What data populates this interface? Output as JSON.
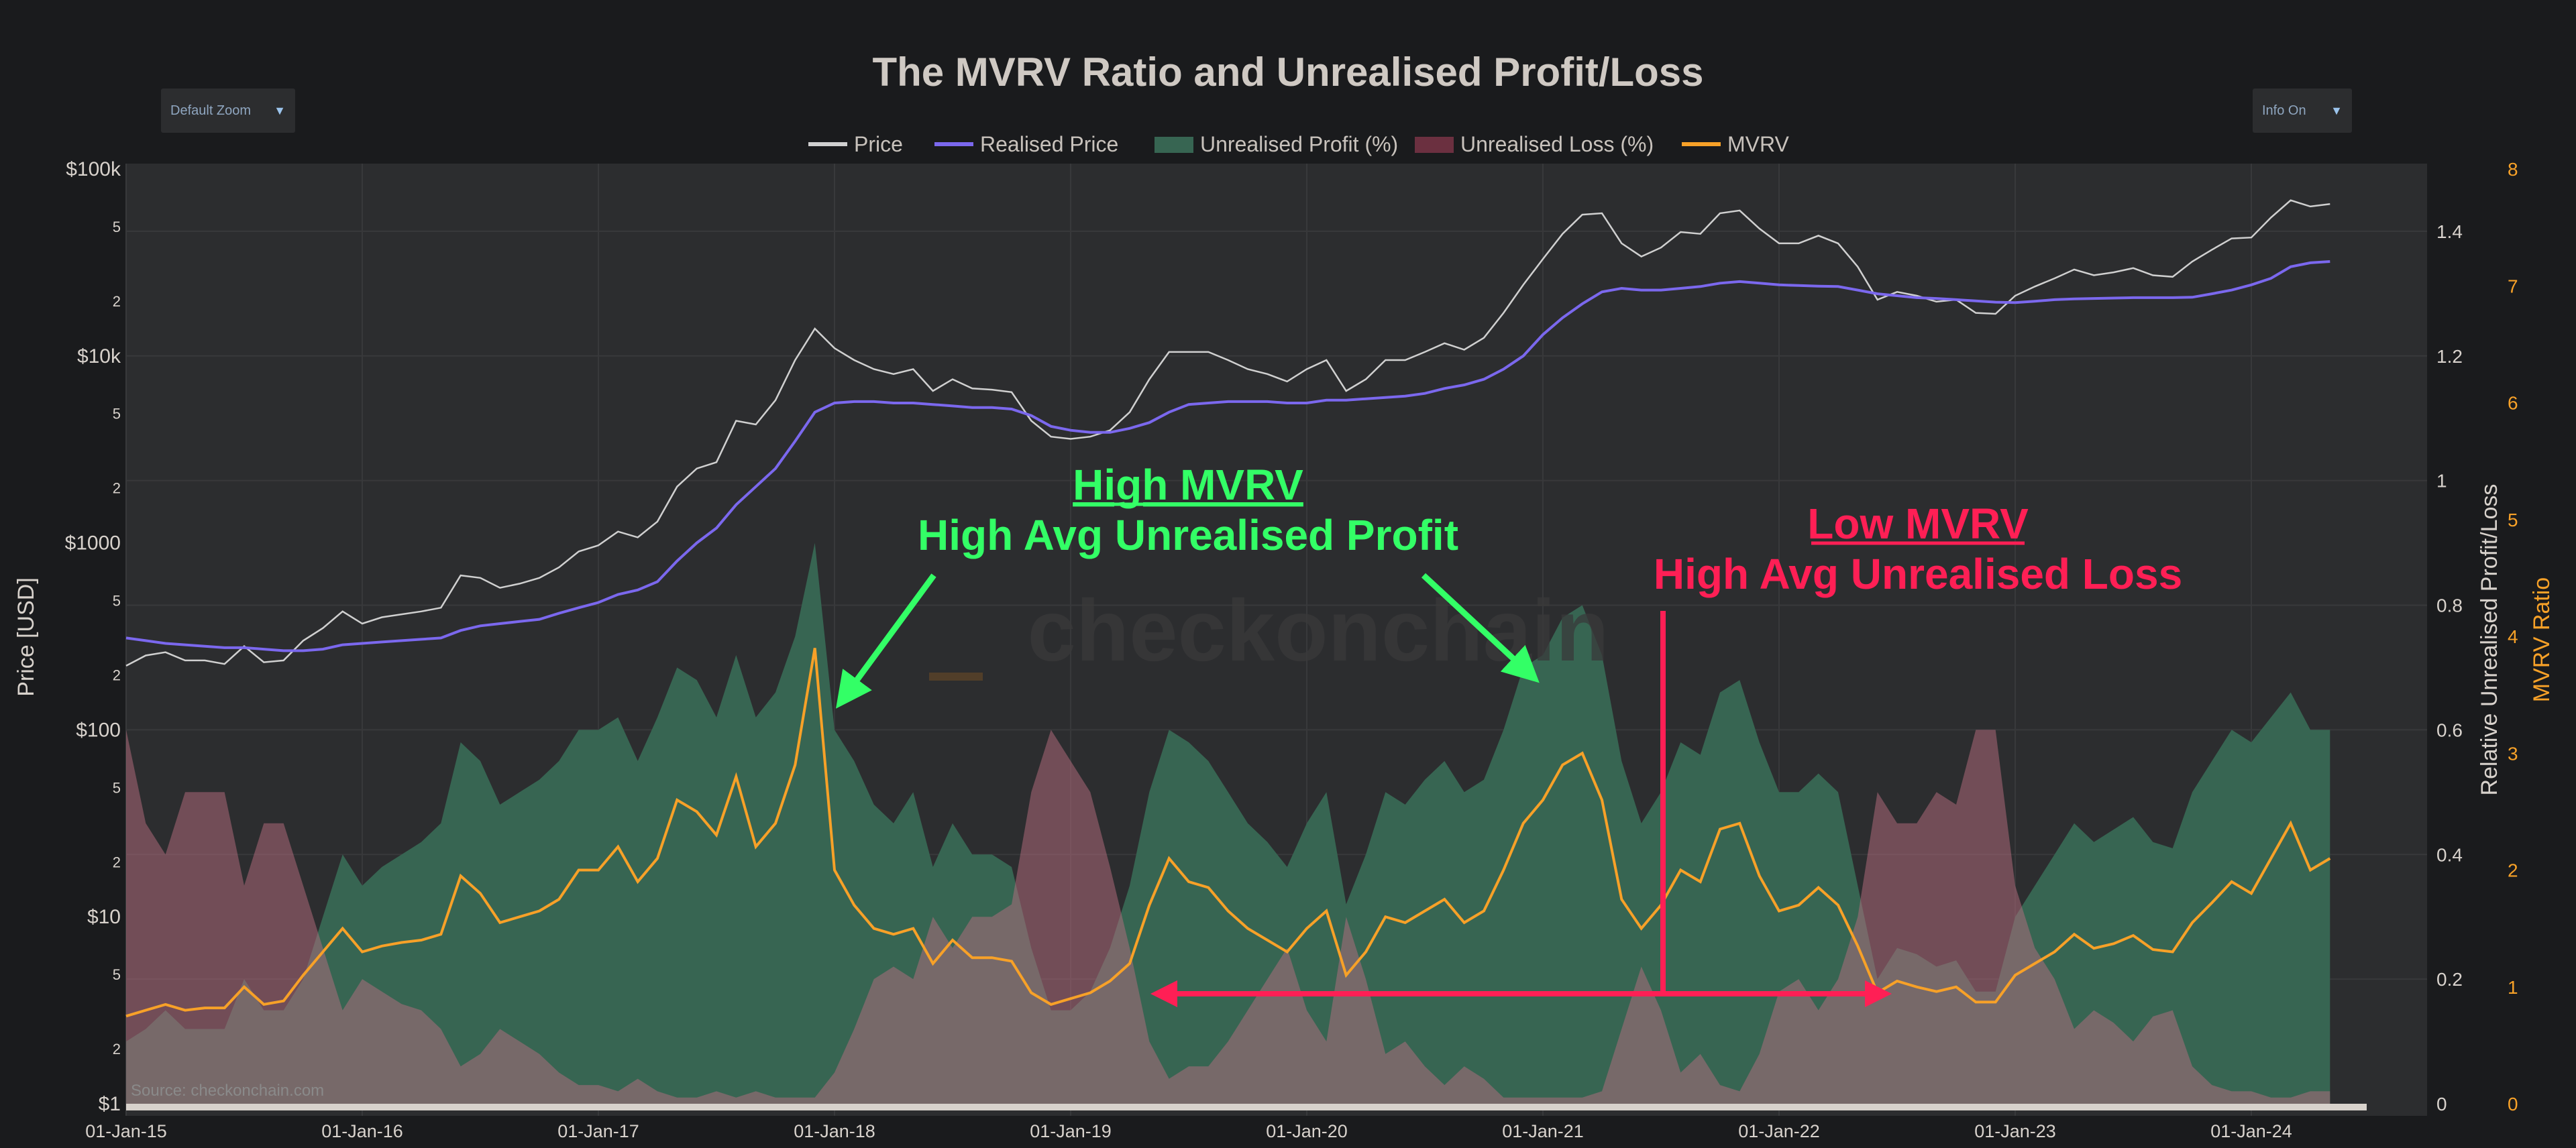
{
  "controls": {
    "zoom_label": "Default Zoom",
    "info_label": "Info On",
    "dropdown_icon": "triangle-down"
  },
  "annotations": {
    "high_mvrv": "High MVRV",
    "high_profit": "High Avg Unrealised Profit",
    "low_mvrv": "Low MVRV",
    "high_loss": "High Avg Unrealised Loss",
    "watermark": "checkonchain",
    "source": "Source: checkonchain.com",
    "profit_color": "#33ff66",
    "loss_color": "#ff1f55"
  },
  "chart_data": {
    "type": "line",
    "title": "The MVRV Ratio and Unrealised Profit/Loss",
    "legend": [
      "Price",
      "Realised Price",
      "Unrealised Profit (%)",
      "Unrealised Loss (%)",
      "MVRV"
    ],
    "legend_placement": "top-center",
    "grid": true,
    "xlabel": "",
    "x_ticks": [
      "01-Jan-15",
      "01-Jan-16",
      "01-Jan-17",
      "01-Jan-18",
      "01-Jan-19",
      "01-Jan-20",
      "01-Jan-21",
      "01-Jan-22",
      "01-Jan-23",
      "01-Jan-24"
    ],
    "x_start": "2015-01",
    "x_step": "month",
    "y_left": {
      "label": "Price [USD]",
      "scale": "log",
      "range": [
        1,
        100000
      ],
      "ticks": [
        "$1",
        "2",
        "5",
        "$10",
        "2",
        "5",
        "$100",
        "2",
        "5",
        "$1000",
        "2",
        "5",
        "$10k",
        "2",
        "5",
        "$100k"
      ],
      "tick_values": [
        1,
        2,
        5,
        10,
        20,
        50,
        100,
        200,
        500,
        1000,
        2000,
        5000,
        10000,
        20000,
        50000,
        100000
      ]
    },
    "y_right_inner": {
      "label": "Relative Unrealised Profit/Loss",
      "range": [
        0,
        1.5
      ],
      "ticks": [
        "0",
        "0.2",
        "0.4",
        "0.6",
        "0.8",
        "1",
        "1.2",
        "1.4"
      ]
    },
    "y_right_outer": {
      "label": "MVRV Ratio",
      "range": [
        0,
        8
      ],
      "ticks": [
        "0",
        "1",
        "2",
        "3",
        "4",
        "5",
        "6",
        "7",
        "8"
      ]
    },
    "colors": {
      "Price": "#d0d0d0",
      "Realised Price": "#7b68ee",
      "Unrealised Profit (%)": "#376552",
      "Unrealised Loss (%)": "#6b3040",
      "MVRV": "#f7a128",
      "plot_bg": "#2c2d2f",
      "page_bg": "#1a1b1d"
    },
    "series": [
      {
        "name": "Price",
        "axis": "left",
        "values": [
          220,
          250,
          260,
          235,
          235,
          225,
          280,
          230,
          235,
          300,
          350,
          430,
          370,
          400,
          415,
          430,
          450,
          670,
          650,
          575,
          605,
          650,
          740,
          900,
          970,
          1150,
          1070,
          1300,
          2000,
          2500,
          2700,
          4500,
          4300,
          5800,
          9500,
          14000,
          11000,
          9500,
          8500,
          8000,
          8500,
          6500,
          7500,
          6700,
          6600,
          6400,
          4500,
          3700,
          3600,
          3700,
          4000,
          5000,
          7500,
          10500,
          10500,
          10500,
          9500,
          8500,
          8000,
          7300,
          8500,
          9500,
          6500,
          7500,
          9500,
          9500,
          10500,
          11700,
          10800,
          12500,
          17000,
          24000,
          33000,
          45000,
          57000,
          58000,
          40000,
          34000,
          38000,
          46000,
          45000,
          58000,
          60000,
          48000,
          40000,
          40000,
          44000,
          40000,
          30000,
          20000,
          22000,
          21000,
          19500,
          20000,
          17000,
          16800,
          21000,
          23500,
          26000,
          29000,
          27000,
          28000,
          29500,
          27000,
          26500,
          32000,
          37000,
          42500,
          43000,
          55000,
          68000,
          63000,
          65000
        ]
      },
      {
        "name": "Realised Price",
        "axis": "left",
        "values": [
          310,
          300,
          290,
          285,
          280,
          275,
          275,
          270,
          265,
          265,
          270,
          285,
          290,
          295,
          300,
          305,
          310,
          340,
          360,
          370,
          380,
          390,
          420,
          450,
          480,
          530,
          560,
          620,
          800,
          1000,
          1200,
          1600,
          2000,
          2500,
          3500,
          5000,
          5600,
          5700,
          5700,
          5600,
          5600,
          5500,
          5400,
          5300,
          5300,
          5200,
          4800,
          4200,
          4000,
          3900,
          3900,
          4100,
          4400,
          5000,
          5500,
          5600,
          5700,
          5700,
          5700,
          5600,
          5600,
          5800,
          5800,
          5900,
          6000,
          6100,
          6300,
          6700,
          7000,
          7500,
          8500,
          10000,
          13000,
          16000,
          19000,
          22000,
          23000,
          22500,
          22500,
          23000,
          23500,
          24500,
          25000,
          24500,
          24000,
          23800,
          23600,
          23500,
          22500,
          21500,
          21000,
          20500,
          20300,
          20000,
          19700,
          19400,
          19300,
          19600,
          20000,
          20200,
          20300,
          20400,
          20500,
          20500,
          20500,
          20600,
          21500,
          22500,
          24000,
          26000,
          30000,
          31500,
          32000
        ]
      },
      {
        "name": "Unrealised Profit (%)",
        "axis": "right_inner",
        "values": [
          0.1,
          0.12,
          0.15,
          0.12,
          0.12,
          0.12,
          0.2,
          0.15,
          0.15,
          0.2,
          0.3,
          0.4,
          0.35,
          0.38,
          0.4,
          0.42,
          0.45,
          0.58,
          0.55,
          0.48,
          0.5,
          0.52,
          0.55,
          0.6,
          0.6,
          0.62,
          0.55,
          0.62,
          0.7,
          0.68,
          0.62,
          0.72,
          0.62,
          0.66,
          0.75,
          0.9,
          0.6,
          0.55,
          0.48,
          0.45,
          0.5,
          0.38,
          0.45,
          0.4,
          0.4,
          0.38,
          0.25,
          0.15,
          0.15,
          0.18,
          0.25,
          0.35,
          0.5,
          0.6,
          0.58,
          0.55,
          0.5,
          0.45,
          0.42,
          0.38,
          0.45,
          0.5,
          0.32,
          0.4,
          0.5,
          0.48,
          0.52,
          0.55,
          0.5,
          0.52,
          0.6,
          0.7,
          0.72,
          0.78,
          0.8,
          0.72,
          0.55,
          0.45,
          0.5,
          0.58,
          0.56,
          0.66,
          0.68,
          0.58,
          0.5,
          0.5,
          0.53,
          0.5,
          0.35,
          0.2,
          0.25,
          0.24,
          0.22,
          0.23,
          0.18,
          0.18,
          0.3,
          0.35,
          0.4,
          0.45,
          0.42,
          0.44,
          0.46,
          0.42,
          0.41,
          0.5,
          0.55,
          0.6,
          0.58,
          0.62,
          0.66,
          0.6,
          0.6
        ]
      },
      {
        "name": "Unrealised Loss (%)",
        "axis": "right_inner",
        "values": [
          0.6,
          0.45,
          0.4,
          0.5,
          0.5,
          0.5,
          0.35,
          0.45,
          0.45,
          0.35,
          0.25,
          0.15,
          0.2,
          0.18,
          0.16,
          0.15,
          0.12,
          0.06,
          0.08,
          0.12,
          0.1,
          0.08,
          0.05,
          0.03,
          0.03,
          0.02,
          0.04,
          0.02,
          0.01,
          0.01,
          0.02,
          0.01,
          0.02,
          0.01,
          0.01,
          0.01,
          0.05,
          0.12,
          0.2,
          0.22,
          0.2,
          0.3,
          0.25,
          0.3,
          0.3,
          0.32,
          0.5,
          0.6,
          0.55,
          0.5,
          0.38,
          0.25,
          0.1,
          0.04,
          0.06,
          0.06,
          0.1,
          0.15,
          0.2,
          0.25,
          0.15,
          0.1,
          0.3,
          0.2,
          0.08,
          0.1,
          0.06,
          0.03,
          0.06,
          0.04,
          0.01,
          0.01,
          0.01,
          0.01,
          0.01,
          0.02,
          0.12,
          0.22,
          0.15,
          0.05,
          0.08,
          0.03,
          0.02,
          0.08,
          0.18,
          0.2,
          0.15,
          0.2,
          0.3,
          0.5,
          0.45,
          0.45,
          0.5,
          0.48,
          0.6,
          0.6,
          0.35,
          0.25,
          0.2,
          0.12,
          0.15,
          0.13,
          0.1,
          0.14,
          0.15,
          0.06,
          0.03,
          0.02,
          0.02,
          0.01,
          0.01,
          0.02,
          0.02
        ]
      },
      {
        "name": "MVRV",
        "axis": "right_outer",
        "values": [
          0.75,
          0.8,
          0.85,
          0.8,
          0.82,
          0.82,
          1.0,
          0.85,
          0.88,
          1.1,
          1.3,
          1.5,
          1.3,
          1.35,
          1.38,
          1.4,
          1.45,
          1.95,
          1.8,
          1.55,
          1.6,
          1.65,
          1.75,
          2.0,
          2.0,
          2.2,
          1.9,
          2.1,
          2.6,
          2.5,
          2.3,
          2.8,
          2.2,
          2.4,
          2.9,
          3.9,
          2.0,
          1.7,
          1.5,
          1.45,
          1.5,
          1.2,
          1.4,
          1.25,
          1.25,
          1.22,
          0.95,
          0.85,
          0.9,
          0.95,
          1.05,
          1.2,
          1.7,
          2.1,
          1.9,
          1.85,
          1.65,
          1.5,
          1.4,
          1.3,
          1.5,
          1.65,
          1.1,
          1.3,
          1.6,
          1.55,
          1.65,
          1.75,
          1.55,
          1.65,
          2.0,
          2.4,
          2.6,
          2.9,
          3.0,
          2.6,
          1.75,
          1.5,
          1.7,
          2.0,
          1.9,
          2.35,
          2.4,
          1.95,
          1.65,
          1.7,
          1.85,
          1.7,
          1.35,
          0.95,
          1.05,
          1.0,
          0.96,
          1.0,
          0.87,
          0.87,
          1.1,
          1.2,
          1.3,
          1.45,
          1.33,
          1.37,
          1.44,
          1.32,
          1.3,
          1.55,
          1.72,
          1.9,
          1.8,
          2.1,
          2.4,
          2.0,
          2.1
        ]
      }
    ]
  }
}
